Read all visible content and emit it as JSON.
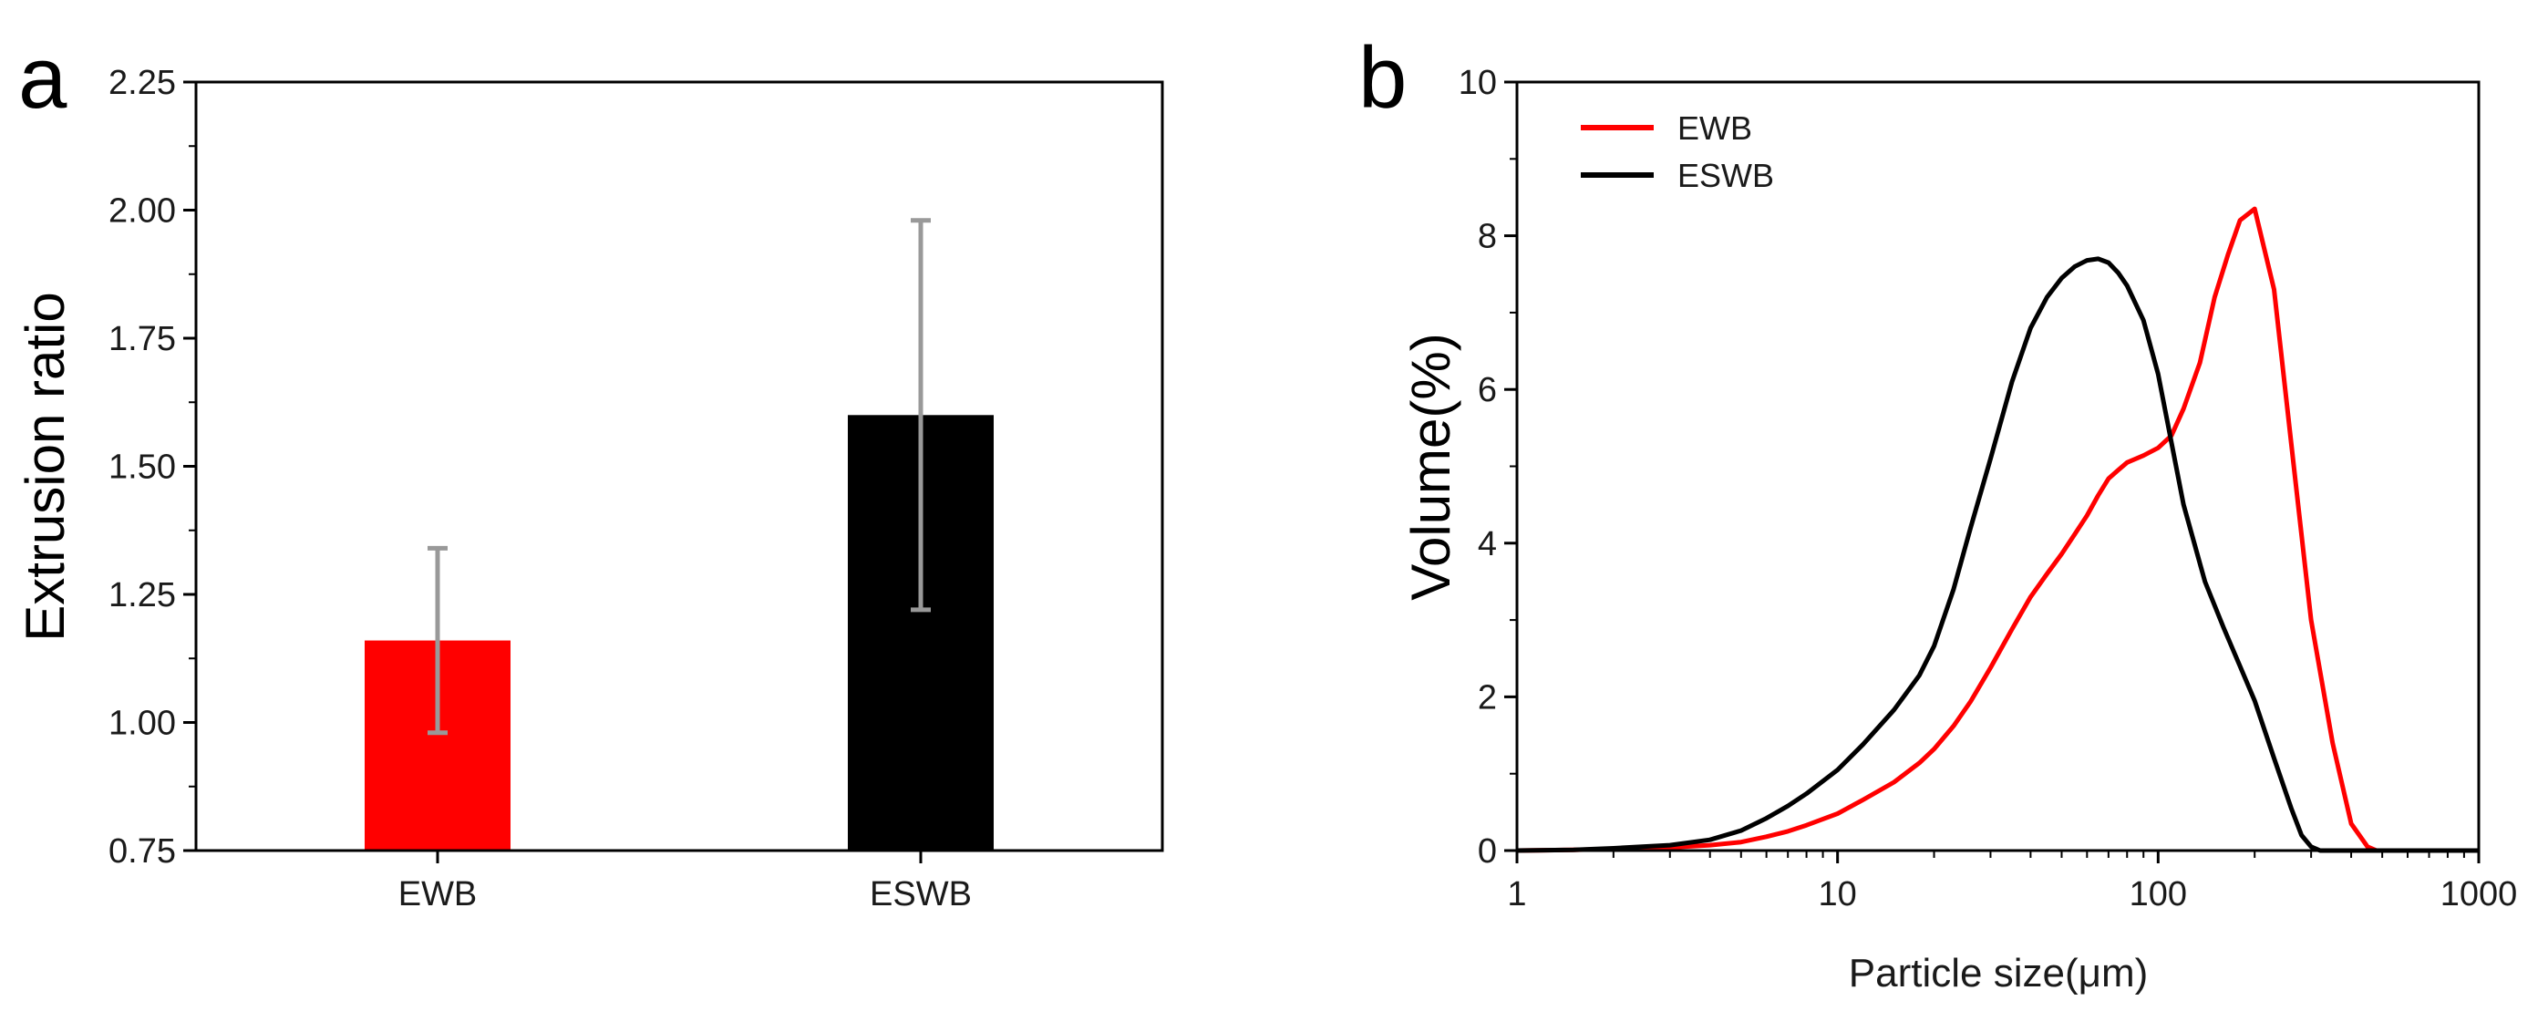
{
  "chart_data": [
    {
      "type": "bar",
      "panel_label": "a",
      "categories": [
        "EWB",
        "ESWB"
      ],
      "values": [
        1.16,
        1.6
      ],
      "error": [
        0.18,
        0.38
      ],
      "colors": [
        "#ff0000",
        "#000000"
      ],
      "error_color": "#999999",
      "ylabel": "Extrusion ratio",
      "xlabel": "",
      "ylim": [
        0.75,
        2.25
      ],
      "yticks": [
        "0.75",
        "1.00",
        "1.25",
        "1.50",
        "1.75",
        "2.00",
        "2.25"
      ],
      "grid": false
    },
    {
      "type": "line",
      "panel_label": "b",
      "xlabel": "Particle size(μm)",
      "ylabel": "Volume(%)",
      "xscale": "log",
      "xlim": [
        1,
        1000
      ],
      "ylim": [
        0,
        10
      ],
      "xticks": [
        "1",
        "10",
        "100",
        "1000"
      ],
      "yticks": [
        "0",
        "2",
        "4",
        "6",
        "8",
        "10"
      ],
      "legend_position": "top-left",
      "grid": false,
      "series": [
        {
          "name": "EWB",
          "color": "#ff0000",
          "x": [
            1,
            1.5,
            2,
            3,
            4,
            5,
            6,
            7,
            8,
            10,
            12,
            15,
            18,
            20,
            23,
            26,
            30,
            35,
            40,
            45,
            50,
            55,
            60,
            65,
            70,
            75,
            80,
            90,
            100,
            110,
            120,
            135,
            150,
            165,
            180,
            200,
            230,
            260,
            300,
            350,
            400,
            450,
            480,
            1000
          ],
          "y": [
            0,
            0.01,
            0.02,
            0.04,
            0.07,
            0.11,
            0.18,
            0.25,
            0.33,
            0.48,
            0.66,
            0.89,
            1.14,
            1.32,
            1.62,
            1.94,
            2.38,
            2.88,
            3.3,
            3.6,
            3.86,
            4.12,
            4.36,
            4.62,
            4.84,
            4.95,
            5.05,
            5.14,
            5.24,
            5.4,
            5.75,
            6.35,
            7.2,
            7.75,
            8.2,
            8.35,
            7.3,
            5.3,
            3.0,
            1.4,
            0.35,
            0.05,
            0,
            0
          ]
        },
        {
          "name": "ESWB",
          "color": "#000000",
          "x": [
            1,
            1.5,
            2,
            3,
            4,
            5,
            6,
            7,
            8,
            10,
            12,
            15,
            18,
            20,
            23,
            26,
            30,
            35,
            40,
            45,
            50,
            55,
            60,
            65,
            70,
            75,
            80,
            90,
            100,
            120,
            140,
            160,
            180,
            200,
            230,
            260,
            280,
            300,
            320,
            1000
          ],
          "y": [
            0,
            0.01,
            0.03,
            0.07,
            0.14,
            0.26,
            0.42,
            0.58,
            0.74,
            1.05,
            1.38,
            1.83,
            2.28,
            2.66,
            3.4,
            4.2,
            5.1,
            6.1,
            6.8,
            7.2,
            7.45,
            7.6,
            7.68,
            7.7,
            7.65,
            7.52,
            7.35,
            6.9,
            6.2,
            4.5,
            3.5,
            2.9,
            2.4,
            1.95,
            1.2,
            0.55,
            0.2,
            0.05,
            0,
            0
          ]
        }
      ]
    }
  ]
}
